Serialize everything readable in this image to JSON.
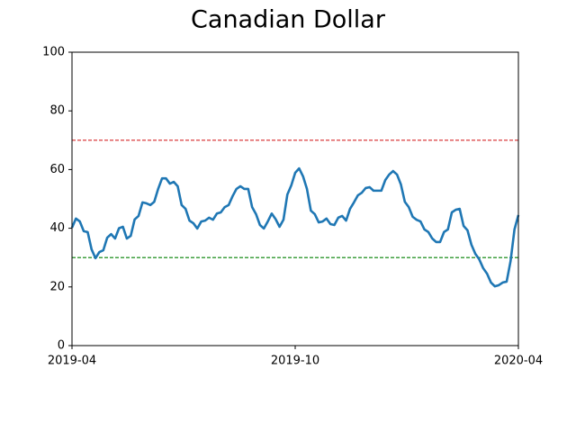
{
  "chart_data": {
    "type": "line",
    "title": "Canadian Dollar",
    "xlim": [
      "2019-04",
      "2020-04"
    ],
    "xticks": [
      "2019-04",
      "2019-10",
      "2020-04"
    ],
    "ylim": [
      0,
      100
    ],
    "yticks": [
      0,
      20,
      40,
      60,
      80,
      100
    ],
    "hlines": [
      {
        "value": 70,
        "color": "#d62728"
      },
      {
        "value": 30,
        "color": "#008000"
      }
    ],
    "series": [
      {
        "color": "#1f77b4",
        "values": [
          40.2,
          43.3,
          42.3,
          39,
          38.7,
          32.8,
          29.8,
          31.9,
          32.5,
          36.8,
          38,
          36.5,
          40,
          40.5,
          36.5,
          37.4,
          43,
          44.2,
          48.8,
          48.5,
          47.9,
          49,
          53.4,
          57,
          57,
          55.2,
          55.8,
          54.3,
          47.9,
          46.6,
          42.6,
          41.7,
          39.9,
          42.3,
          42.6,
          43.6,
          42.9,
          45,
          45.4,
          47.2,
          47.9,
          50.9,
          53.4,
          54.3,
          53.4,
          53.4,
          47.2,
          44.8,
          41.1,
          39.9,
          42.3,
          45,
          43.1,
          40.5,
          42.9,
          51.5,
          54.6,
          58.9,
          60.4,
          57.7,
          53.4,
          46,
          44.8,
          42,
          42.3,
          43.3,
          41.4,
          41.1,
          43.6,
          44.2,
          42.6,
          46.6,
          48.8,
          51.2,
          52.1,
          53.7,
          54,
          52.8,
          52.8,
          52.8,
          56.4,
          58.3,
          59.5,
          58.3,
          54.9,
          49,
          47.2,
          43.9,
          42.9,
          42.3,
          39.6,
          38.7,
          36.5,
          35.3,
          35.3,
          38.7,
          39.6,
          45.4,
          46.3,
          46.6,
          40.8,
          39.3,
          34.4,
          31.3,
          29.4,
          26.4,
          24.5,
          21.5,
          20.2,
          20.6,
          21.5,
          21.8,
          28.8,
          39.6,
          44.5
        ]
      }
    ]
  }
}
